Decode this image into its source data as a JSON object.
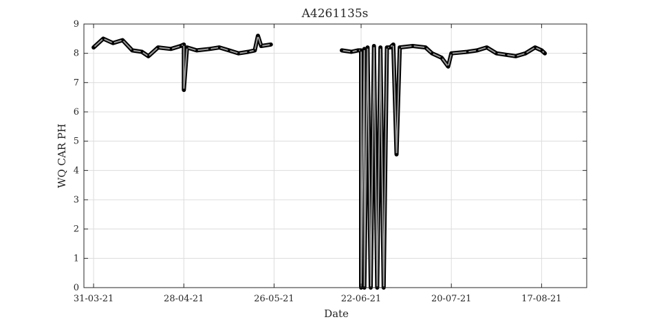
{
  "chart_data": {
    "type": "line",
    "title": "A4261135s",
    "xlabel": "Date",
    "ylabel": "WQ CAR PH",
    "x_ticks": [
      "31-03-21",
      "28-04-21",
      "26-05-21",
      "22-06-21",
      "20-07-21",
      "17-08-21"
    ],
    "y_ticks": [
      "0",
      "1",
      "2",
      "3",
      "4",
      "5",
      "6",
      "7",
      "8",
      "9"
    ],
    "xlim": [
      "2021-03-28",
      "2021-08-31"
    ],
    "ylim": [
      0,
      9
    ],
    "grid": true,
    "colors": {
      "series_edge": "#000000",
      "series_fill": "#999999",
      "grid": "#dcdcdc",
      "axis": "#262626"
    },
    "series": [
      {
        "segments": [
          [
            [
              "2021-03-31",
              8.2
            ],
            [
              "2021-04-03",
              8.5
            ],
            [
              "2021-04-06",
              8.35
            ],
            [
              "2021-04-09",
              8.45
            ],
            [
              "2021-04-12",
              8.1
            ],
            [
              "2021-04-15",
              8.05
            ],
            [
              "2021-04-17",
              7.9
            ],
            [
              "2021-04-20",
              8.2
            ],
            [
              "2021-04-24",
              8.15
            ],
            [
              "2021-04-27",
              8.25
            ],
            [
              "2021-04-28",
              8.3
            ],
            [
              "2021-04-28",
              6.75
            ],
            [
              "2021-04-29",
              8.2
            ],
            [
              "2021-05-02",
              8.1
            ],
            [
              "2021-05-06",
              8.15
            ],
            [
              "2021-05-09",
              8.2
            ],
            [
              "2021-05-12",
              8.1
            ],
            [
              "2021-05-15",
              8.0
            ],
            [
              "2021-05-18",
              8.05
            ],
            [
              "2021-05-20",
              8.1
            ],
            [
              "2021-05-21",
              8.6
            ],
            [
              "2021-05-22",
              8.25
            ],
            [
              "2021-05-25",
              8.3
            ]
          ],
          [
            [
              "2021-06-16",
              8.1
            ],
            [
              "2021-06-19",
              8.05
            ],
            [
              "2021-06-21",
              8.1
            ],
            [
              "2021-06-22",
              8.1
            ],
            [
              "2021-06-22",
              0.0
            ],
            [
              "2021-06-23",
              8.15
            ],
            [
              "2021-06-23",
              0.0
            ],
            [
              "2021-06-24",
              8.2
            ],
            [
              "2021-06-25",
              0.0
            ],
            [
              "2021-06-26",
              8.25
            ],
            [
              "2021-06-27",
              0.0
            ],
            [
              "2021-06-28",
              8.2
            ],
            [
              "2021-06-29",
              0.0
            ],
            [
              "2021-06-30",
              8.2
            ],
            [
              "2021-07-01",
              8.2
            ],
            [
              "2021-07-02",
              8.3
            ],
            [
              "2021-07-03",
              4.55
            ],
            [
              "2021-07-04",
              8.2
            ],
            [
              "2021-07-08",
              8.25
            ],
            [
              "2021-07-12",
              8.2
            ],
            [
              "2021-07-14",
              8.0
            ],
            [
              "2021-07-17",
              7.85
            ],
            [
              "2021-07-19",
              7.55
            ],
            [
              "2021-07-20",
              8.0
            ],
            [
              "2021-07-25",
              8.05
            ],
            [
              "2021-07-28",
              8.1
            ],
            [
              "2021-07-31",
              8.2
            ],
            [
              "2021-08-03",
              8.0
            ],
            [
              "2021-08-06",
              7.95
            ],
            [
              "2021-08-09",
              7.9
            ],
            [
              "2021-08-12",
              8.0
            ],
            [
              "2021-08-15",
              8.2
            ],
            [
              "2021-08-17",
              8.1
            ],
            [
              "2021-08-18",
              8.0
            ]
          ]
        ]
      }
    ]
  }
}
